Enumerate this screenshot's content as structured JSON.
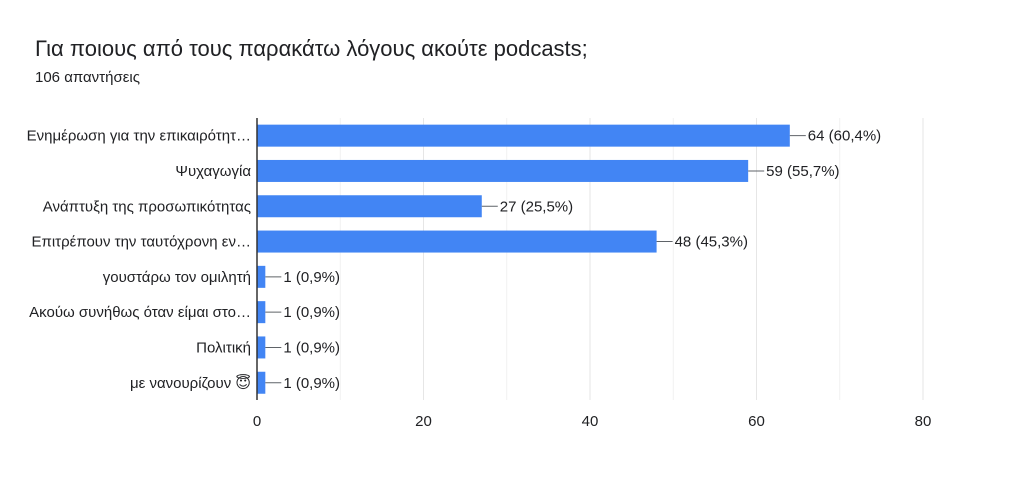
{
  "header": {
    "title": "Για ποιους από τους παρακάτω λόγους ακούτε podcasts;",
    "subtitle": "106 απαντήσεις"
  },
  "chart_data": {
    "type": "bar",
    "orientation": "horizontal",
    "categories": [
      "Ενημέρωση για την επικαιρότητ…",
      "Ψυχαγωγία",
      "Ανάπτυξη της προσωπικότητας",
      "Επιτρέπουν την ταυτόχρονη εν…",
      "γουστάρω τον ομιλητή",
      "Ακούω συνήθως όταν είμαι στο…",
      "Πολιτική",
      "με νανουρίζουν 😇"
    ],
    "values": [
      64,
      59,
      27,
      48,
      1,
      1,
      1,
      1
    ],
    "data_labels": [
      "64 (60,4%)",
      "59 (55,7%)",
      "27 (25,5%)",
      "48 (45,3%)",
      "1 (0,9%)",
      "1 (0,9%)",
      "1 (0,9%)",
      "1 (0,9%)"
    ],
    "xlim": [
      0,
      80
    ],
    "xticks": [
      0,
      20,
      40,
      60,
      80
    ],
    "grid": true,
    "colors": {
      "bar": "#4285f4",
      "grid": "#e6e6e6",
      "axis": "#333333",
      "leader": "#5f6368"
    }
  }
}
